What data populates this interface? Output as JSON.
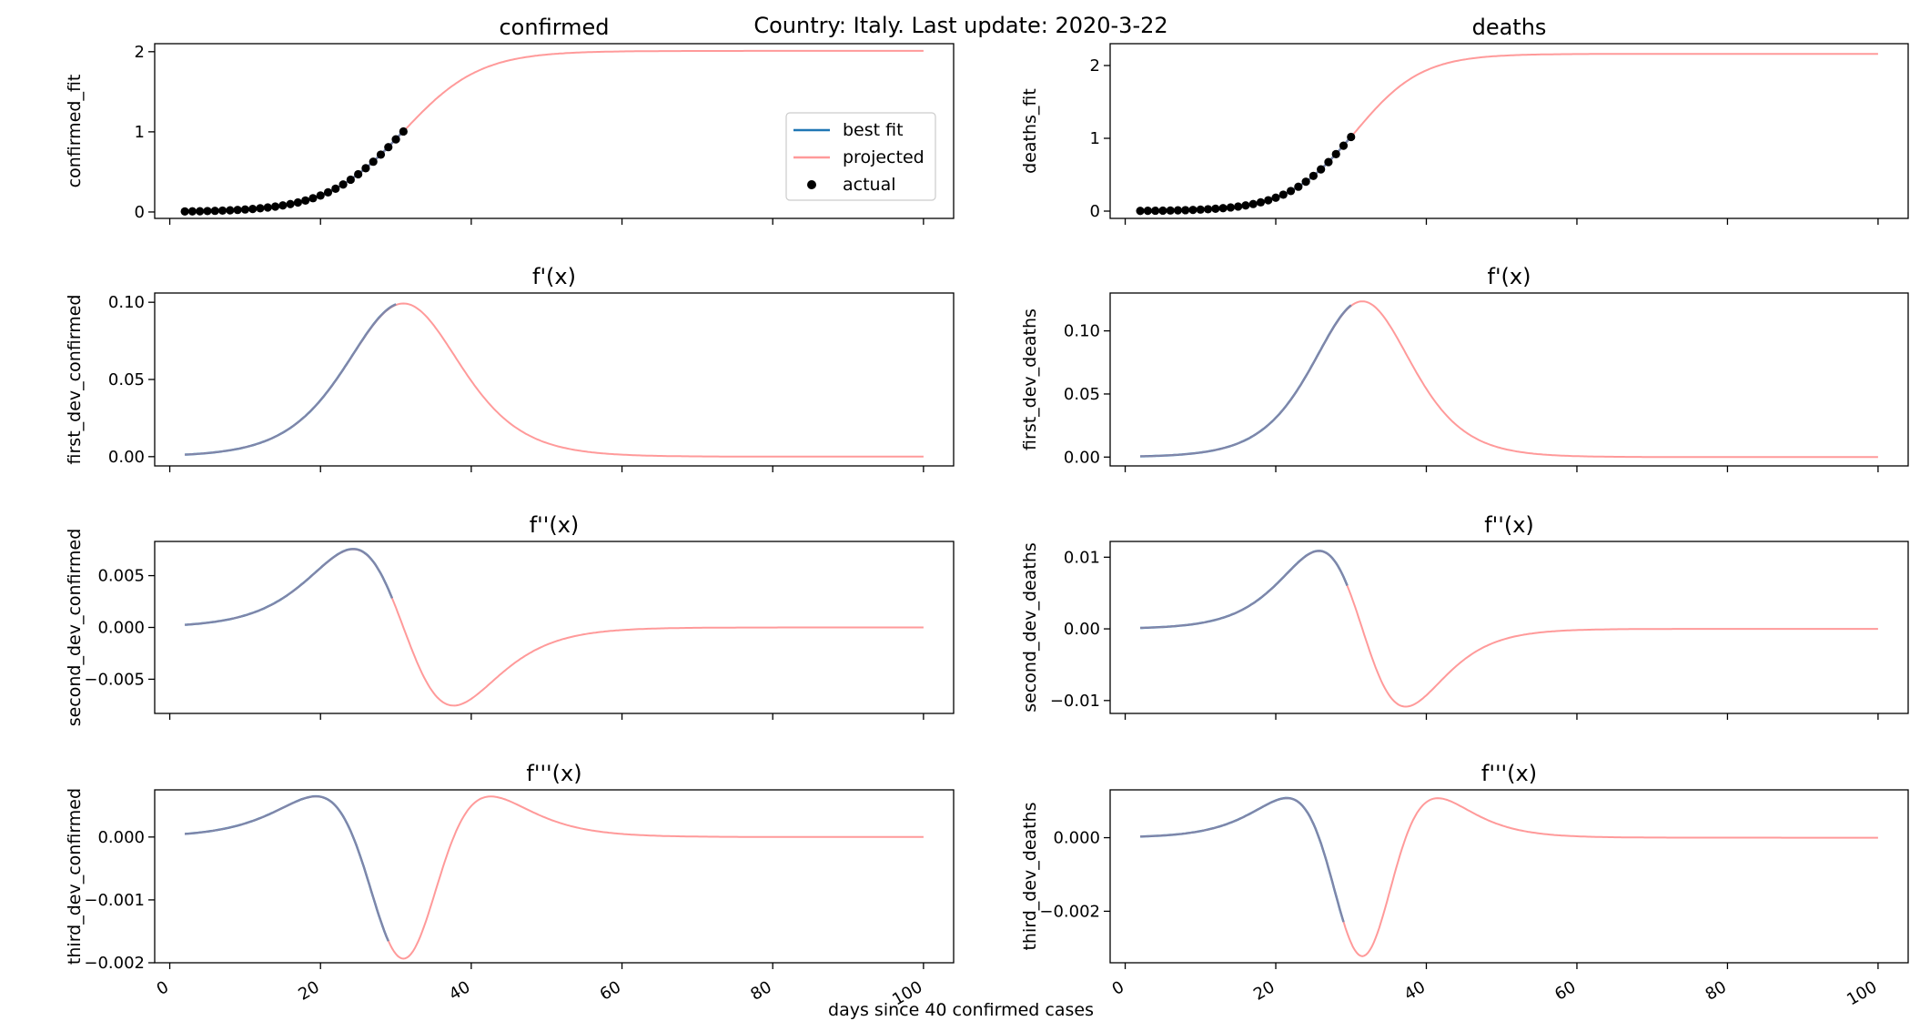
{
  "figure": {
    "title": "Country: Italy. Last update: 2020-3-22",
    "xlabel": "days since 40 confirmed cases"
  },
  "legend": {
    "entries": [
      {
        "label": "best fit",
        "kind": "line",
        "color": "#1f77b4"
      },
      {
        "label": "projected",
        "kind": "line",
        "color": "#ff9a9a"
      },
      {
        "label": "actual",
        "kind": "dot",
        "color": "#000000"
      }
    ],
    "placement": "center-right",
    "panel": "confirmed"
  },
  "colors": {
    "best_fit": "#1f77b4",
    "projected": "#ff9a9a",
    "actual": "#000000",
    "overlap": "#7b5c8e"
  },
  "chart_data": [
    {
      "id": "confirmed",
      "type": "line",
      "title": "confirmed",
      "ylabel": "confirmed_fit",
      "curve": "f0",
      "scale": 2.01,
      "t0": 31.0,
      "k": 0.1975,
      "x_fit_end": 31,
      "x_range": [
        2,
        100
      ],
      "xlim": [
        -2,
        104
      ],
      "ylim": [
        -0.08,
        2.1
      ],
      "yticks": [
        0,
        1,
        2
      ],
      "ytick_labels": [
        "0",
        "1",
        "2"
      ],
      "xtick_labels_shown": false,
      "actual_x": [
        2,
        3,
        4,
        5,
        6,
        7,
        8,
        9,
        10,
        11,
        12,
        13,
        14,
        15,
        16,
        17,
        18,
        19,
        20,
        21,
        22,
        23,
        24,
        25,
        26,
        27,
        28,
        29,
        30,
        31
      ],
      "series": [
        {
          "name": "best fit"
        },
        {
          "name": "projected"
        },
        {
          "name": "actual"
        }
      ]
    },
    {
      "id": "deaths",
      "type": "line",
      "title": "deaths",
      "ylabel": "deaths_fit",
      "curve": "f0",
      "scale": 2.16,
      "t0": 30.5,
      "k": 0.226,
      "x_fit_end": 30,
      "x_range": [
        2,
        100
      ],
      "xlim": [
        -2,
        104
      ],
      "ylim": [
        -0.1,
        2.3
      ],
      "yticks": [
        0,
        1,
        2
      ],
      "ytick_labels": [
        "0",
        "1",
        "2"
      ],
      "xtick_labels_shown": false,
      "actual_x": [
        2,
        3,
        4,
        5,
        6,
        7,
        8,
        9,
        10,
        11,
        12,
        13,
        14,
        15,
        16,
        17,
        18,
        19,
        20,
        21,
        22,
        23,
        24,
        25,
        26,
        27,
        28,
        29,
        30
      ],
      "series": [
        {
          "name": "best fit"
        },
        {
          "name": "projected"
        },
        {
          "name": "actual"
        }
      ]
    },
    {
      "id": "first_confirmed",
      "type": "line",
      "title": "f'(x)",
      "ylabel": "first_dev_confirmed",
      "curve": "f1",
      "scale": 2.01,
      "t0": 31.0,
      "k": 0.1975,
      "x_fit_end": 30,
      "x_range": [
        2,
        100
      ],
      "xlim": [
        -2,
        104
      ],
      "ylim": [
        -0.006,
        0.106
      ],
      "yticks": [
        0,
        0.05,
        0.1
      ],
      "ytick_labels": [
        "0.00",
        "0.05",
        "0.10"
      ],
      "xtick_labels_shown": false
    },
    {
      "id": "first_deaths",
      "type": "line",
      "title": "f'(x)",
      "ylabel": "first_dev_deaths",
      "curve": "f1",
      "scale": 2.16,
      "t0": 31.5,
      "k": 0.2285,
      "x_fit_end": 30,
      "x_range": [
        2,
        100
      ],
      "xlim": [
        -2,
        104
      ],
      "ylim": [
        -0.007,
        0.13
      ],
      "yticks": [
        0,
        0.05,
        0.1
      ],
      "ytick_labels": [
        "0.00",
        "0.05",
        "0.10"
      ],
      "xtick_labels_shown": false
    },
    {
      "id": "second_confirmed",
      "type": "line",
      "title": "f''(x)",
      "ylabel": "second_dev_confirmed",
      "curve": "f2",
      "scale": 2.01,
      "t0": 31.0,
      "k": 0.1975,
      "x_fit_end": 29.5,
      "x_range": [
        2,
        100
      ],
      "xlim": [
        -2,
        104
      ],
      "ylim": [
        -0.0083,
        0.0083
      ],
      "yticks": [
        -0.005,
        0,
        0.005
      ],
      "ytick_labels": [
        "−0.005",
        "0.000",
        "0.005"
      ],
      "xtick_labels_shown": false
    },
    {
      "id": "second_deaths",
      "type": "line",
      "title": "f''(x)",
      "ylabel": "second_dev_deaths",
      "curve": "f2",
      "scale": 2.16,
      "t0": 31.5,
      "k": 0.2285,
      "x_fit_end": 29.5,
      "x_range": [
        2,
        100
      ],
      "xlim": [
        -2,
        104
      ],
      "ylim": [
        -0.0118,
        0.0122
      ],
      "yticks": [
        -0.01,
        0,
        0.01
      ],
      "ytick_labels": [
        "−0.01",
        "0.00",
        "0.01"
      ],
      "xtick_labels_shown": false
    },
    {
      "id": "third_confirmed",
      "type": "line",
      "title": "f'''(x)",
      "ylabel": "third_dev_confirmed",
      "curve": "f3",
      "scale": 2.01,
      "t0": 31.0,
      "k": 0.1975,
      "x_fit_end": 29,
      "x_range": [
        2,
        100
      ],
      "xlim": [
        -2,
        104
      ],
      "ylim": [
        -0.002,
        0.00075
      ],
      "yticks": [
        -0.002,
        -0.001,
        0
      ],
      "ytick_labels": [
        "−0.002",
        "−0.001",
        "0.000"
      ],
      "xtick_labels_shown": true,
      "xticks": [
        0,
        20,
        40,
        60,
        80,
        100
      ],
      "xtick_labels": [
        "0",
        "20",
        "40",
        "60",
        "80",
        "100"
      ]
    },
    {
      "id": "third_deaths",
      "type": "line",
      "title": "f'''(x)",
      "ylabel": "third_dev_deaths",
      "curve": "f3",
      "scale": 2.16,
      "t0": 31.5,
      "k": 0.2285,
      "x_fit_end": 29,
      "x_range": [
        2,
        100
      ],
      "xlim": [
        -2,
        104
      ],
      "ylim": [
        -0.0034,
        0.0013
      ],
      "yticks": [
        -0.002,
        0
      ],
      "ytick_labels": [
        "−0.002",
        "0.000"
      ],
      "xtick_labels_shown": true,
      "xticks": [
        0,
        20,
        40,
        60,
        80,
        100
      ],
      "xtick_labels": [
        "0",
        "20",
        "40",
        "60",
        "80",
        "100"
      ]
    }
  ]
}
